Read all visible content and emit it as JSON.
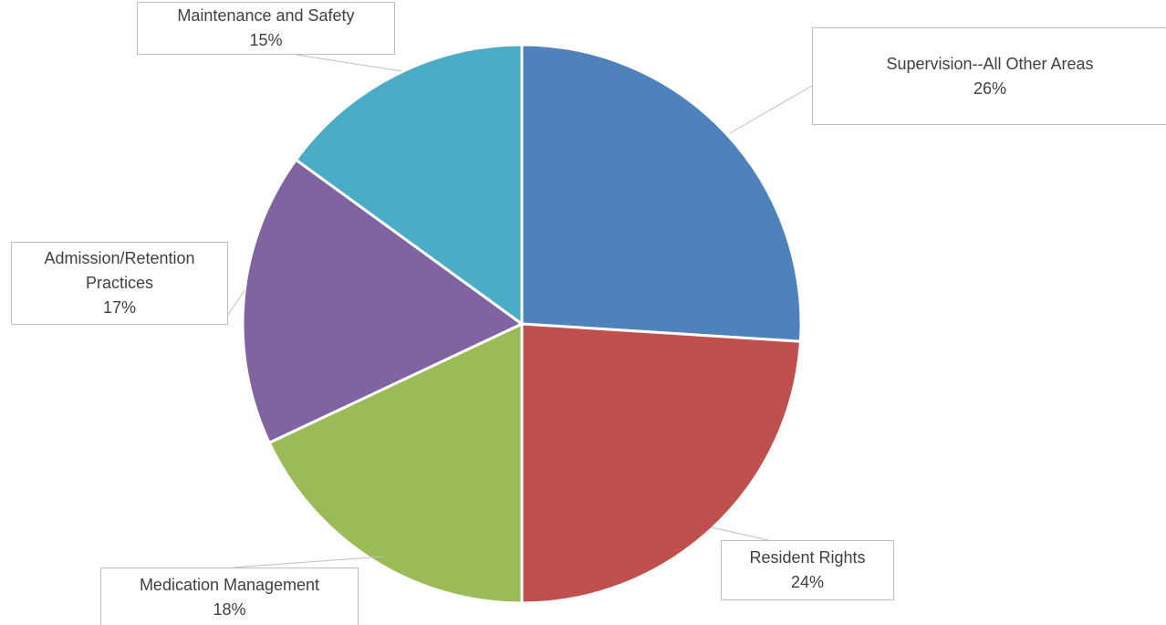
{
  "chart_data": {
    "type": "pie",
    "categories": [
      "Supervision--All Other Areas",
      "Resident Rights",
      "Medication Management",
      "Admission/Retention Practices",
      "Maintenance and Safety"
    ],
    "values": [
      26,
      24,
      18,
      17,
      15
    ],
    "value_labels": [
      "26%",
      "24%",
      "18%",
      "17%",
      "15%"
    ],
    "colors": [
      "#4f81bd",
      "#c0504d",
      "#9bbb59",
      "#8064a2",
      "#4bacc6"
    ]
  }
}
